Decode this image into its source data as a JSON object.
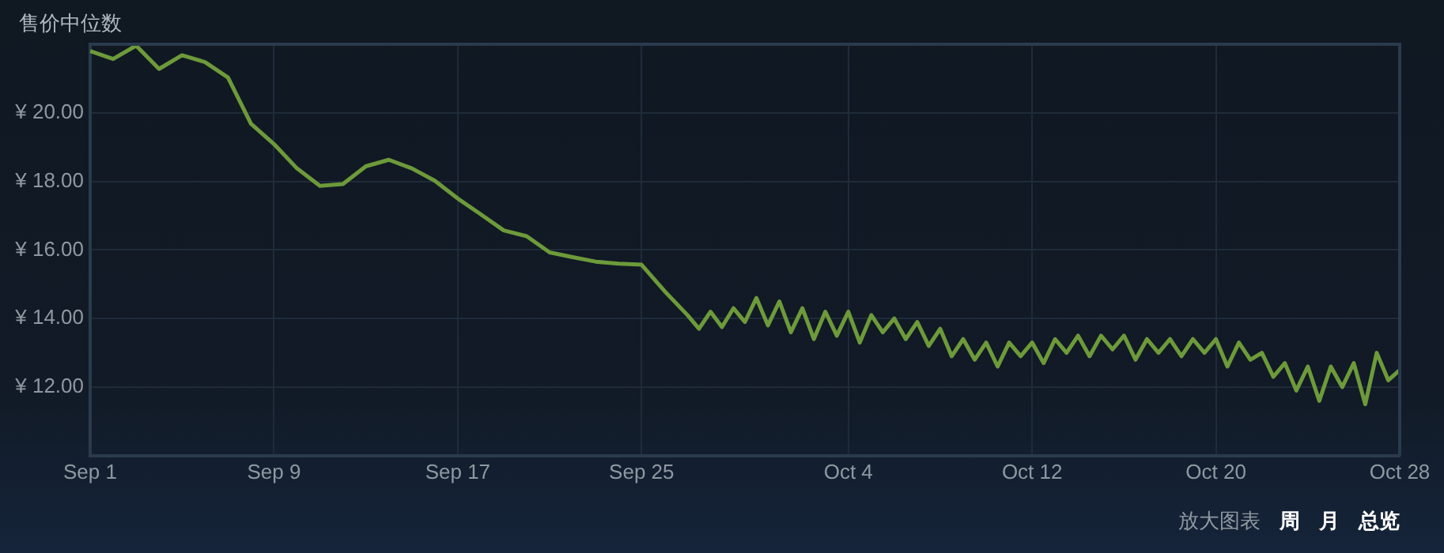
{
  "chart_data": {
    "type": "line",
    "title": "售价中位数",
    "annotations": [
      "放大图表",
      "周",
      "月",
      "总览"
    ],
    "x": [
      "--09-01",
      "--09-02",
      "--09-03",
      "--09-04",
      "--09-05",
      "--09-06",
      "--09-07",
      "--09-08",
      "--09-09",
      "--09-10",
      "--09-11",
      "--09-12",
      "--09-13",
      "--09-14",
      "--09-15",
      "--09-16",
      "--09-17",
      "--09-18",
      "--09-19",
      "--09-20",
      "--09-21",
      "--09-22",
      "--09-23",
      "--09-24",
      "--09-25",
      "--09-26",
      "--09-27",
      "--09-27T12:00",
      "--09-28",
      "--09-28T12:00",
      "--09-29",
      "--09-29T12:00",
      "--09-30",
      "--09-30T12:00",
      "--10-01",
      "--10-01T12:00",
      "--10-02",
      "--10-02T12:00",
      "--10-03",
      "--10-03T12:00",
      "--10-04",
      "--10-04T12:00",
      "--10-05",
      "--10-05T12:00",
      "--10-06",
      "--10-06T12:00",
      "--10-07",
      "--10-07T12:00",
      "--10-08",
      "--10-08T12:00",
      "--10-09",
      "--10-09T12:00",
      "--10-10",
      "--10-10T12:00",
      "--10-11",
      "--10-11T12:00",
      "--10-12",
      "--10-12T12:00",
      "--10-13",
      "--10-13T12:00",
      "--10-14",
      "--10-14T12:00",
      "--10-15",
      "--10-15T12:00",
      "--10-16",
      "--10-16T12:00",
      "--10-17",
      "--10-17T12:00",
      "--10-18",
      "--10-18T12:00",
      "--10-19",
      "--10-19T12:00",
      "--10-20",
      "--10-20T12:00",
      "--10-21",
      "--10-21T12:00",
      "--10-22",
      "--10-22T12:00",
      "--10-23",
      "--10-23T12:00",
      "--10-24",
      "--10-24T12:00",
      "--10-25",
      "--10-25T12:00",
      "--10-26",
      "--10-26T12:00",
      "--10-27",
      "--10-27T12:00",
      "--10-28"
    ],
    "series": [
      {
        "color": "#6d9a3a",
        "values": [
          21.8,
          21.57,
          21.96,
          21.28,
          21.68,
          21.48,
          21.03,
          19.68,
          19.09,
          18.38,
          17.87,
          17.92,
          18.44,
          18.63,
          18.38,
          18.02,
          17.5,
          17.04,
          16.57,
          16.4,
          15.93,
          15.79,
          15.66,
          15.6,
          15.57,
          14.8,
          14.1,
          13.7,
          14.2,
          13.75,
          14.3,
          13.9,
          14.6,
          13.8,
          14.5,
          13.6,
          14.3,
          13.4,
          14.2,
          13.5,
          14.2,
          13.3,
          14.1,
          13.6,
          14.0,
          13.4,
          13.9,
          13.2,
          13.7,
          12.9,
          13.4,
          12.8,
          13.3,
          12.6,
          13.3,
          12.9,
          13.3,
          12.7,
          13.4,
          13.0,
          13.5,
          12.9,
          13.5,
          13.1,
          13.5,
          12.8,
          13.4,
          13.0,
          13.4,
          12.9,
          13.4,
          13.0,
          13.4,
          12.6,
          13.3,
          12.8,
          13.0,
          12.3,
          12.7,
          11.9,
          12.6,
          11.6,
          12.6,
          12.0,
          12.7,
          11.5,
          13.0,
          12.2,
          12.5
        ]
      }
    ],
    "xlim": [
      "--09-01",
      "--10-28"
    ],
    "xticks": [
      {
        "value": "--09-01",
        "label": "Sep 1"
      },
      {
        "value": "--09-09",
        "label": "Sep 9"
      },
      {
        "value": "--09-17",
        "label": "Sep 17"
      },
      {
        "value": "--09-25",
        "label": "Sep 25"
      },
      {
        "value": "--10-04",
        "label": "Oct 4"
      },
      {
        "value": "--10-12",
        "label": "Oct 12"
      },
      {
        "value": "--10-20",
        "label": "Oct 20"
      },
      {
        "value": "--10-28",
        "label": "Oct 28"
      }
    ],
    "ylim": [
      10,
      22
    ],
    "yticks": [
      {
        "value": 12,
        "label": "¥ 12.00"
      },
      {
        "value": 14,
        "label": "¥ 14.00"
      },
      {
        "value": 16,
        "label": "¥ 16.00"
      },
      {
        "value": 18,
        "label": "¥ 18.00"
      },
      {
        "value": 20,
        "label": "¥ 20.00"
      }
    ],
    "grid": true,
    "legend": false,
    "marker": "none",
    "line_style": "solid"
  }
}
